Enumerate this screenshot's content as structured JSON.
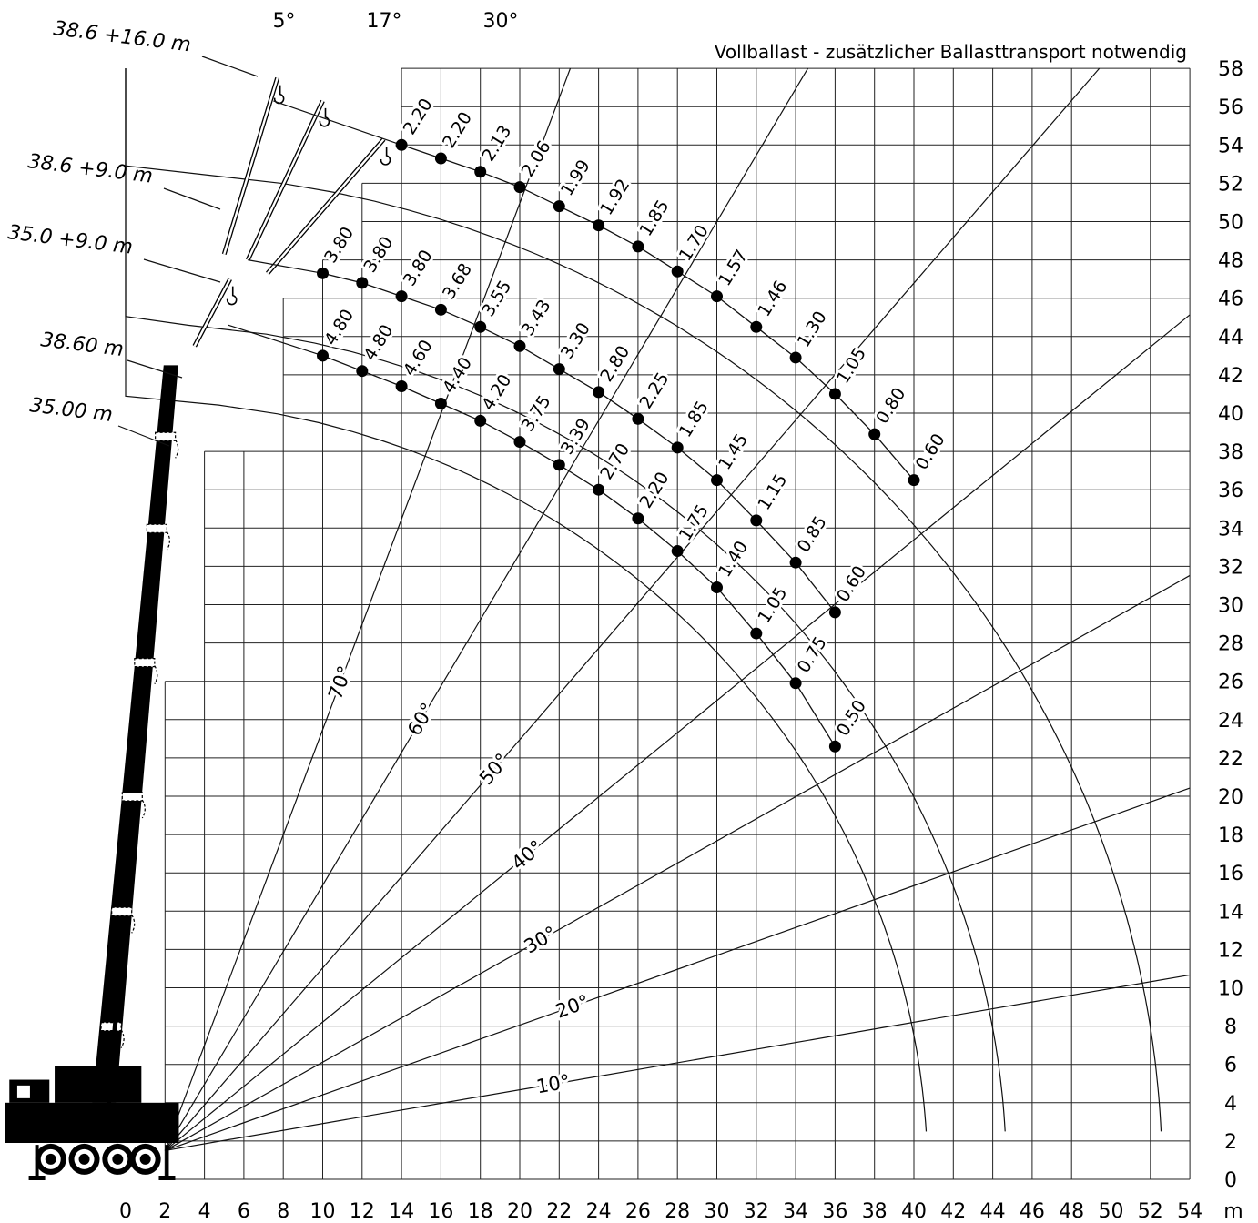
{
  "chart_data": {
    "type": "scatter",
    "title": "",
    "note": "Vollballast - zusätzlicher Ballasttransport notwendig",
    "xlabel": "m",
    "ylabel": "",
    "xlim": [
      0,
      54
    ],
    "ylim": [
      0,
      58
    ],
    "x_ticks": [
      0,
      2,
      4,
      6,
      8,
      10,
      12,
      14,
      16,
      18,
      20,
      22,
      24,
      26,
      28,
      30,
      32,
      34,
      36,
      38,
      40,
      42,
      44,
      46,
      48,
      50,
      52,
      54
    ],
    "y_ticks": [
      0,
      2,
      4,
      6,
      8,
      10,
      12,
      14,
      16,
      18,
      20,
      22,
      24,
      26,
      28,
      30,
      32,
      34,
      36,
      38,
      40,
      42,
      44,
      46,
      48,
      50,
      52,
      54,
      56,
      58
    ],
    "grid": true,
    "boom_labels": [
      "38.6 +16.0 m",
      "38.6 +9.0 m",
      "35.0 +9.0 m",
      "38.60 m",
      "35.00 m"
    ],
    "jib_offsets": [
      "5°",
      "17°",
      "30°"
    ],
    "angle_lines": [
      {
        "label": "70°",
        "deg": 70
      },
      {
        "label": "60°",
        "deg": 60
      },
      {
        "label": "50°",
        "deg": 50
      },
      {
        "label": "40°",
        "deg": 40
      },
      {
        "label": "30°",
        "deg": 30
      },
      {
        "label": "20°",
        "deg": 20
      },
      {
        "label": "10°",
        "deg": 10
      }
    ],
    "series": [
      {
        "name": "38.6 +16.0 m",
        "points": [
          {
            "x": 14,
            "y": 54,
            "label": "2.20"
          },
          {
            "x": 16,
            "y": 53.3,
            "label": "2.20"
          },
          {
            "x": 18,
            "y": 52.6,
            "label": "2.13"
          },
          {
            "x": 20,
            "y": 51.8,
            "label": "2.06"
          },
          {
            "x": 22,
            "y": 50.8,
            "label": "1.99"
          },
          {
            "x": 24,
            "y": 49.8,
            "label": "1.92"
          },
          {
            "x": 26,
            "y": 48.7,
            "label": "1.85"
          },
          {
            "x": 28,
            "y": 47.4,
            "label": "1.70"
          },
          {
            "x": 30,
            "y": 46.1,
            "label": "1.57"
          },
          {
            "x": 32,
            "y": 44.5,
            "label": "1.46"
          },
          {
            "x": 34,
            "y": 42.9,
            "label": "1.30"
          },
          {
            "x": 36,
            "y": 41.0,
            "label": "1.05"
          },
          {
            "x": 38,
            "y": 38.9,
            "label": "0.80"
          },
          {
            "x": 40,
            "y": 36.5,
            "label": "0.60"
          }
        ]
      },
      {
        "name": "38.6 +9.0 m",
        "points": [
          {
            "x": 10,
            "y": 47.3,
            "label": "3.80"
          },
          {
            "x": 12,
            "y": 46.8,
            "label": "3.80"
          },
          {
            "x": 14,
            "y": 46.1,
            "label": "3.80"
          },
          {
            "x": 16,
            "y": 45.4,
            "label": "3.68"
          },
          {
            "x": 18,
            "y": 44.5,
            "label": "3.55"
          },
          {
            "x": 20,
            "y": 43.5,
            "label": "3.43"
          },
          {
            "x": 22,
            "y": 42.3,
            "label": "3.30"
          },
          {
            "x": 24,
            "y": 41.1,
            "label": "2.80"
          },
          {
            "x": 26,
            "y": 39.7,
            "label": "2.25"
          },
          {
            "x": 28,
            "y": 38.2,
            "label": "1.85"
          },
          {
            "x": 30,
            "y": 36.5,
            "label": "1.45"
          },
          {
            "x": 32,
            "y": 34.4,
            "label": "1.15"
          },
          {
            "x": 34,
            "y": 32.2,
            "label": "0.85"
          },
          {
            "x": 36,
            "y": 29.6,
            "label": "0.60"
          }
        ]
      },
      {
        "name": "35.0 +9.0 m",
        "points": [
          {
            "x": 10,
            "y": 43.0,
            "label": "4.80"
          },
          {
            "x": 12,
            "y": 42.2,
            "label": "4.80"
          },
          {
            "x": 14,
            "y": 41.4,
            "label": "4.60"
          },
          {
            "x": 16,
            "y": 40.5,
            "label": "4.40"
          },
          {
            "x": 18,
            "y": 39.6,
            "label": "4.20"
          },
          {
            "x": 20,
            "y": 38.5,
            "label": "3.75"
          },
          {
            "x": 22,
            "y": 37.3,
            "label": "3.39"
          },
          {
            "x": 24,
            "y": 36.0,
            "label": "2.70"
          },
          {
            "x": 26,
            "y": 34.5,
            "label": "2.20"
          },
          {
            "x": 28,
            "y": 32.8,
            "label": "1.75"
          },
          {
            "x": 30,
            "y": 30.9,
            "label": "1.40"
          },
          {
            "x": 32,
            "y": 28.5,
            "label": "1.05"
          },
          {
            "x": 34,
            "y": 25.9,
            "label": "0.75"
          },
          {
            "x": 36,
            "y": 22.6,
            "label": "0.50"
          }
        ]
      }
    ],
    "radius_arcs": [
      {
        "name": "38.6 +16.0 m",
        "r": 52.6
      },
      {
        "name": "38.6 +9.0 m",
        "r": 44.7
      },
      {
        "name": "35.0 +9.0 m",
        "r": 40.7
      }
    ],
    "boom_tips": [
      {
        "name": "38.60 m",
        "radius": 2,
        "height": 42.5
      },
      {
        "name": "35.00 m",
        "radius": 2,
        "height": 38.8
      }
    ]
  }
}
